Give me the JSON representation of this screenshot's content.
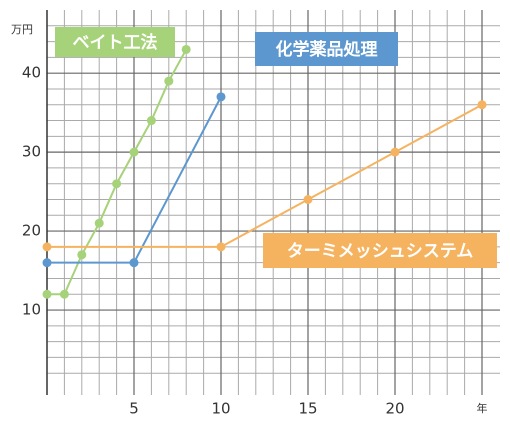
{
  "chart_data": {
    "type": "line",
    "y_label": "万円",
    "xlim": [
      0,
      25
    ],
    "ylim": [
      0,
      48
    ],
    "xticks": [
      5,
      10,
      15,
      20,
      {
        "value": 25,
        "label": "年"
      }
    ],
    "yticks": [
      10,
      20,
      30,
      40
    ],
    "x_minor_ticks": [
      1,
      2,
      3,
      4,
      6,
      7,
      8,
      9,
      11,
      12,
      13,
      14,
      16,
      17,
      18,
      19,
      21,
      22,
      23,
      24
    ],
    "y_minor_ticks": [
      2,
      4,
      6,
      8,
      12,
      14,
      16,
      18,
      22,
      24,
      26,
      28,
      32,
      34,
      36,
      38,
      42,
      44,
      46
    ],
    "grid": true,
    "series": [
      {
        "name": "ベイト工法",
        "color": "#a6d279",
        "x": [
          0,
          1,
          2,
          3,
          4,
          5,
          6,
          7,
          8
        ],
        "values": [
          12,
          12,
          17,
          21,
          26,
          30,
          34,
          39,
          43
        ]
      },
      {
        "name": "化学薬品処理",
        "color": "#5c97cf",
        "x": [
          0,
          5,
          10
        ],
        "values": [
          16,
          16,
          37
        ]
      },
      {
        "name": "ターミメッシュシステム",
        "color": "#f5b360",
        "x": [
          0,
          10,
          15,
          20,
          25
        ],
        "values": [
          18,
          18,
          24,
          30,
          36
        ]
      }
    ]
  }
}
